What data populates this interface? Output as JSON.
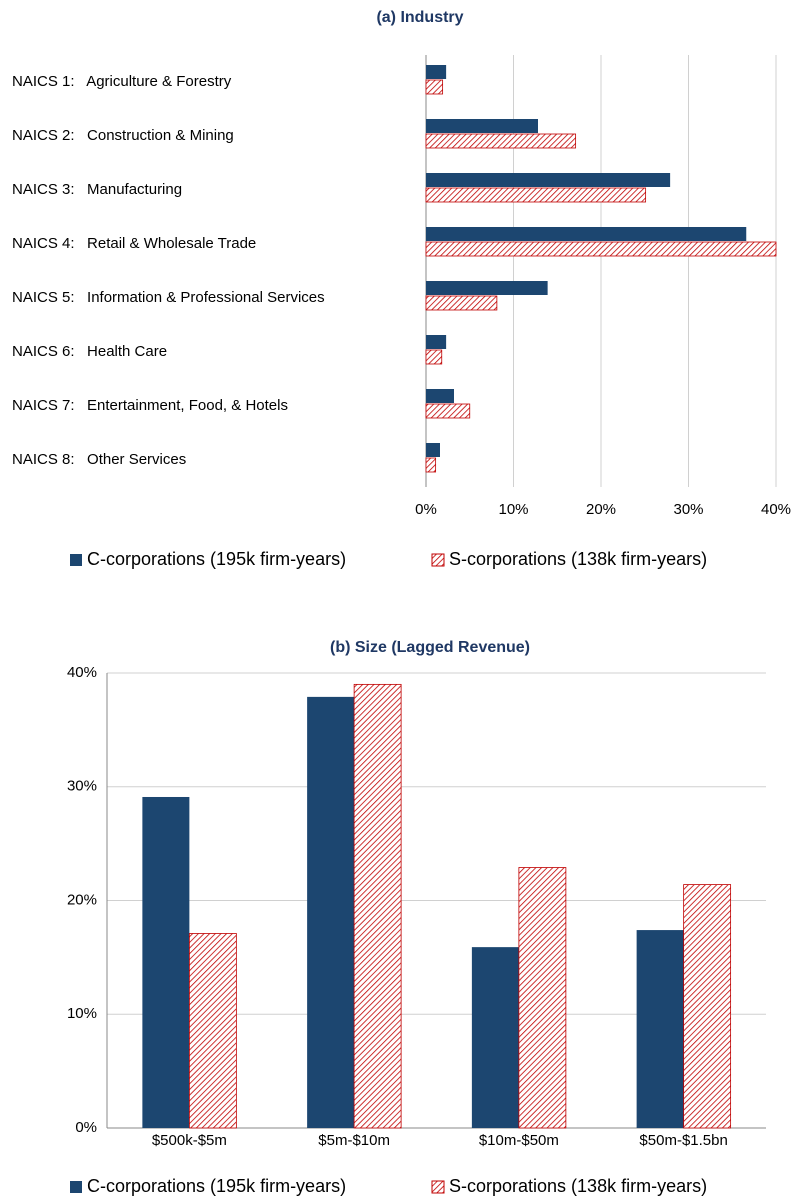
{
  "chart_data": [
    {
      "type": "barh",
      "title": "(a) Industry",
      "categories": [
        "NAICS 1:   Agriculture & Forestry",
        "NAICS 2:   Construction & Mining",
        "NAICS 3:   Manufacturing",
        "NAICS 4:   Retail & Wholesale Trade",
        "NAICS 5:   Information & Professional Services",
        "NAICS 6:   Health Care",
        "NAICS 7:   Entertainment, Food, & Hotels",
        "NAICS 8:   Other Services"
      ],
      "series": [
        {
          "name": "C-corporations (195k firm-years)",
          "color": "#1c4670",
          "hatch": false,
          "values": [
            2.3,
            12.8,
            27.9,
            36.6,
            13.9,
            2.3,
            3.2,
            1.6
          ]
        },
        {
          "name": "S-corporations (138k firm-years)",
          "color": "#c00000",
          "hatch": true,
          "values": [
            1.9,
            17.1,
            25.1,
            40.0,
            8.1,
            1.8,
            5.0,
            1.1
          ]
        }
      ],
      "xlim": [
        0,
        40
      ],
      "xticks": [
        {
          "value": 0,
          "label": "0%"
        },
        {
          "value": 10,
          "label": "10%"
        },
        {
          "value": 20,
          "label": "20%"
        },
        {
          "value": 30,
          "label": "30%"
        },
        {
          "value": 40,
          "label": "40%"
        }
      ],
      "grid": true
    },
    {
      "type": "bar",
      "title": "(b) Size (Lagged Revenue)",
      "categories": [
        "$500k-$5m",
        "$5m-$10m",
        "$10m-$50m",
        "$50m-$1.5bn"
      ],
      "series": [
        {
          "name": "C-corporations (195k firm-years)",
          "color": "#1c4670",
          "hatch": false,
          "values": [
            29.1,
            37.9,
            15.9,
            17.4
          ]
        },
        {
          "name": "S-corporations (138k firm-years)",
          "color": "#c00000",
          "hatch": true,
          "values": [
            17.1,
            39.0,
            22.9,
            21.4
          ]
        }
      ],
      "ylim": [
        0,
        40
      ],
      "yticks": [
        {
          "value": 0,
          "label": "0%"
        },
        {
          "value": 10,
          "label": "10%"
        },
        {
          "value": 20,
          "label": "20%"
        },
        {
          "value": 30,
          "label": "30%"
        },
        {
          "value": 40,
          "label": "40%"
        }
      ],
      "grid": true
    }
  ]
}
